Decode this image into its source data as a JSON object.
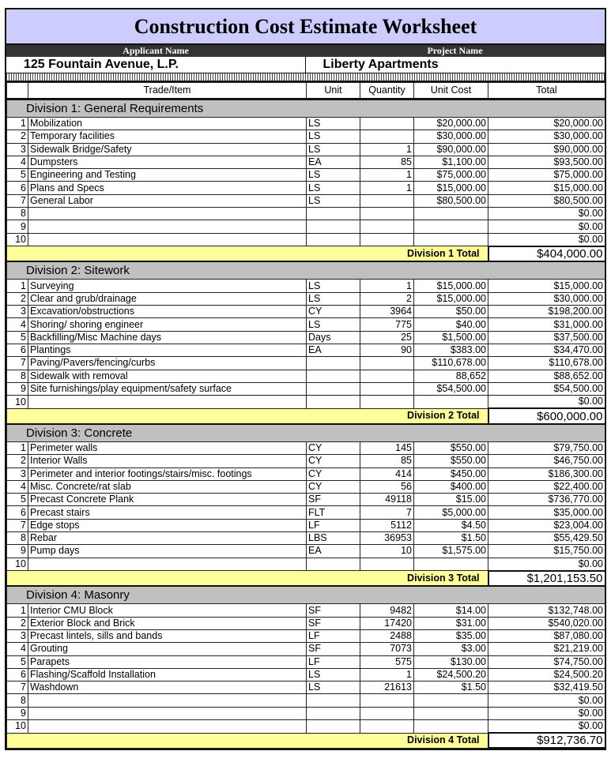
{
  "title": "Construction Cost Estimate Worksheet",
  "applicant_label": "Applicant Name",
  "project_label": "Project  Name",
  "applicant": "125 Fountain Avenue, L.P.",
  "project": "Liberty Apartments",
  "columns": {
    "item": "Trade/Item",
    "unit": "Unit",
    "quantity": "Quantity",
    "unit_cost": "Unit Cost",
    "total": "Total"
  },
  "colors": {
    "title_bg": "#ccccff",
    "division_bg": "#c0c0c0",
    "total_bg": "#ffff99"
  },
  "divisions": [
    {
      "name": "Division 1: General Requirements",
      "total_label": "Division 1 Total",
      "total": "$404,000.00",
      "rows": [
        [
          "1",
          "Mobilization",
          "LS",
          "",
          "$20,000.00",
          "$20,000.00"
        ],
        [
          "2",
          "Temporary facilities",
          "LS",
          "",
          "$30,000.00",
          "$30,000.00"
        ],
        [
          "3",
          "Sidewalk Bridge/Safety",
          "LS",
          "1",
          "$90,000.00",
          "$90,000.00"
        ],
        [
          "4",
          "Dumpsters",
          "EA",
          "85",
          "$1,100.00",
          "$93,500.00"
        ],
        [
          "5",
          "Engineering and Testing",
          "LS",
          "1",
          "$75,000.00",
          "$75,000.00"
        ],
        [
          "6",
          "Plans and Specs",
          "LS",
          "1",
          "$15,000.00",
          "$15,000.00"
        ],
        [
          "7",
          "General Labor",
          "LS",
          "",
          "$80,500.00",
          "$80,500.00"
        ],
        [
          "8",
          "",
          "",
          "",
          "",
          "$0.00"
        ],
        [
          "9",
          "",
          "",
          "",
          "",
          "$0.00"
        ],
        [
          "10",
          "",
          "",
          "",
          "",
          "$0.00"
        ]
      ]
    },
    {
      "name": "Division 2: Sitework",
      "total_label": "Division 2 Total",
      "total": "$600,000.00",
      "rows": [
        [
          "1",
          "Surveying",
          "LS",
          "1",
          "$15,000.00",
          "$15,000.00"
        ],
        [
          "2",
          "Clear and grub/drainage",
          "LS",
          "2",
          "$15,000.00",
          "$30,000.00"
        ],
        [
          "3",
          "Excavation/obstructions",
          "CY",
          "3964",
          "$50.00",
          "$198,200.00"
        ],
        [
          "4",
          "Shoring/ shoring engineer",
          "LS",
          "775",
          "$40.00",
          "$31,000.00"
        ],
        [
          "5",
          "Backfilling/Misc Machine days",
          "Days",
          "25",
          "$1,500.00",
          "$37,500.00"
        ],
        [
          "6",
          "Plantings",
          "EA",
          "90",
          "$383.00",
          "$34,470.00"
        ],
        [
          "7",
          "Paving/Pavers/fencing/curbs",
          "",
          "",
          "$110,678.00",
          "$110,678.00"
        ],
        [
          "8",
          "Sidewalk with removal",
          "",
          "",
          "88,652",
          "$88,652.00"
        ],
        [
          "9",
          "Site furnishings/play equipment/safety surface",
          "",
          "",
          "$54,500.00",
          "$54,500.00"
        ],
        [
          "10",
          "",
          "",
          "",
          "",
          "$0.00"
        ]
      ]
    },
    {
      "name": "Division 3: Concrete",
      "total_label": "Division 3 Total",
      "total": "$1,201,153.50",
      "rows": [
        [
          "1",
          "Perimeter walls",
          "CY",
          "145",
          "$550.00",
          "$79,750.00"
        ],
        [
          "2",
          "Interior Walls",
          "CY",
          "85",
          "$550.00",
          "$46,750.00"
        ],
        [
          "3",
          "Perimeter and interior footings/stairs/misc. footings",
          "CY",
          "414",
          "$450.00",
          "$186,300.00"
        ],
        [
          "4",
          "Misc. Concrete/rat slab",
          "CY",
          "56",
          "$400.00",
          "$22,400.00"
        ],
        [
          "5",
          "Precast Concrete Plank",
          "SF",
          "49118",
          "$15.00",
          "$736,770.00"
        ],
        [
          "6",
          "Precast stairs",
          "FLT",
          "7",
          "$5,000.00",
          "$35,000.00"
        ],
        [
          "7",
          "Edge stops",
          "LF",
          "5112",
          "$4.50",
          "$23,004.00"
        ],
        [
          "8",
          "Rebar",
          "LBS",
          "36953",
          "$1.50",
          "$55,429.50"
        ],
        [
          "9",
          "Pump days",
          "EA",
          "10",
          "$1,575.00",
          "$15,750.00"
        ],
        [
          "10",
          "",
          "",
          "",
          "",
          "$0.00"
        ]
      ]
    },
    {
      "name": "Division 4: Masonry",
      "total_label": "Division 4 Total",
      "total": "$912,736.70",
      "rows": [
        [
          "1",
          "Interior CMU Block",
          "SF",
          "9482",
          "$14.00",
          "$132,748.00"
        ],
        [
          "2",
          "Exterior Block and Brick",
          "SF",
          "17420",
          "$31.00",
          "$540,020.00"
        ],
        [
          "3",
          "Precast lintels, sills and bands",
          "LF",
          "2488",
          "$35.00",
          "$87,080.00"
        ],
        [
          "4",
          "Grouting",
          "SF",
          "7073",
          "$3.00",
          "$21,219.00"
        ],
        [
          "5",
          "Parapets",
          "LF",
          "575",
          "$130.00",
          "$74,750.00"
        ],
        [
          "6",
          "Flashing/Scaffold Installation",
          "LS",
          "1",
          "$24,500.20",
          "$24,500.20"
        ],
        [
          "7",
          "Washdown",
          "LS",
          "21613",
          "$1.50",
          "$32,419.50"
        ],
        [
          "8",
          "",
          "",
          "",
          "",
          "$0.00"
        ],
        [
          "9",
          "",
          "",
          "",
          "",
          "$0.00"
        ],
        [
          "10",
          "",
          "",
          "",
          "",
          "$0.00"
        ]
      ]
    }
  ]
}
